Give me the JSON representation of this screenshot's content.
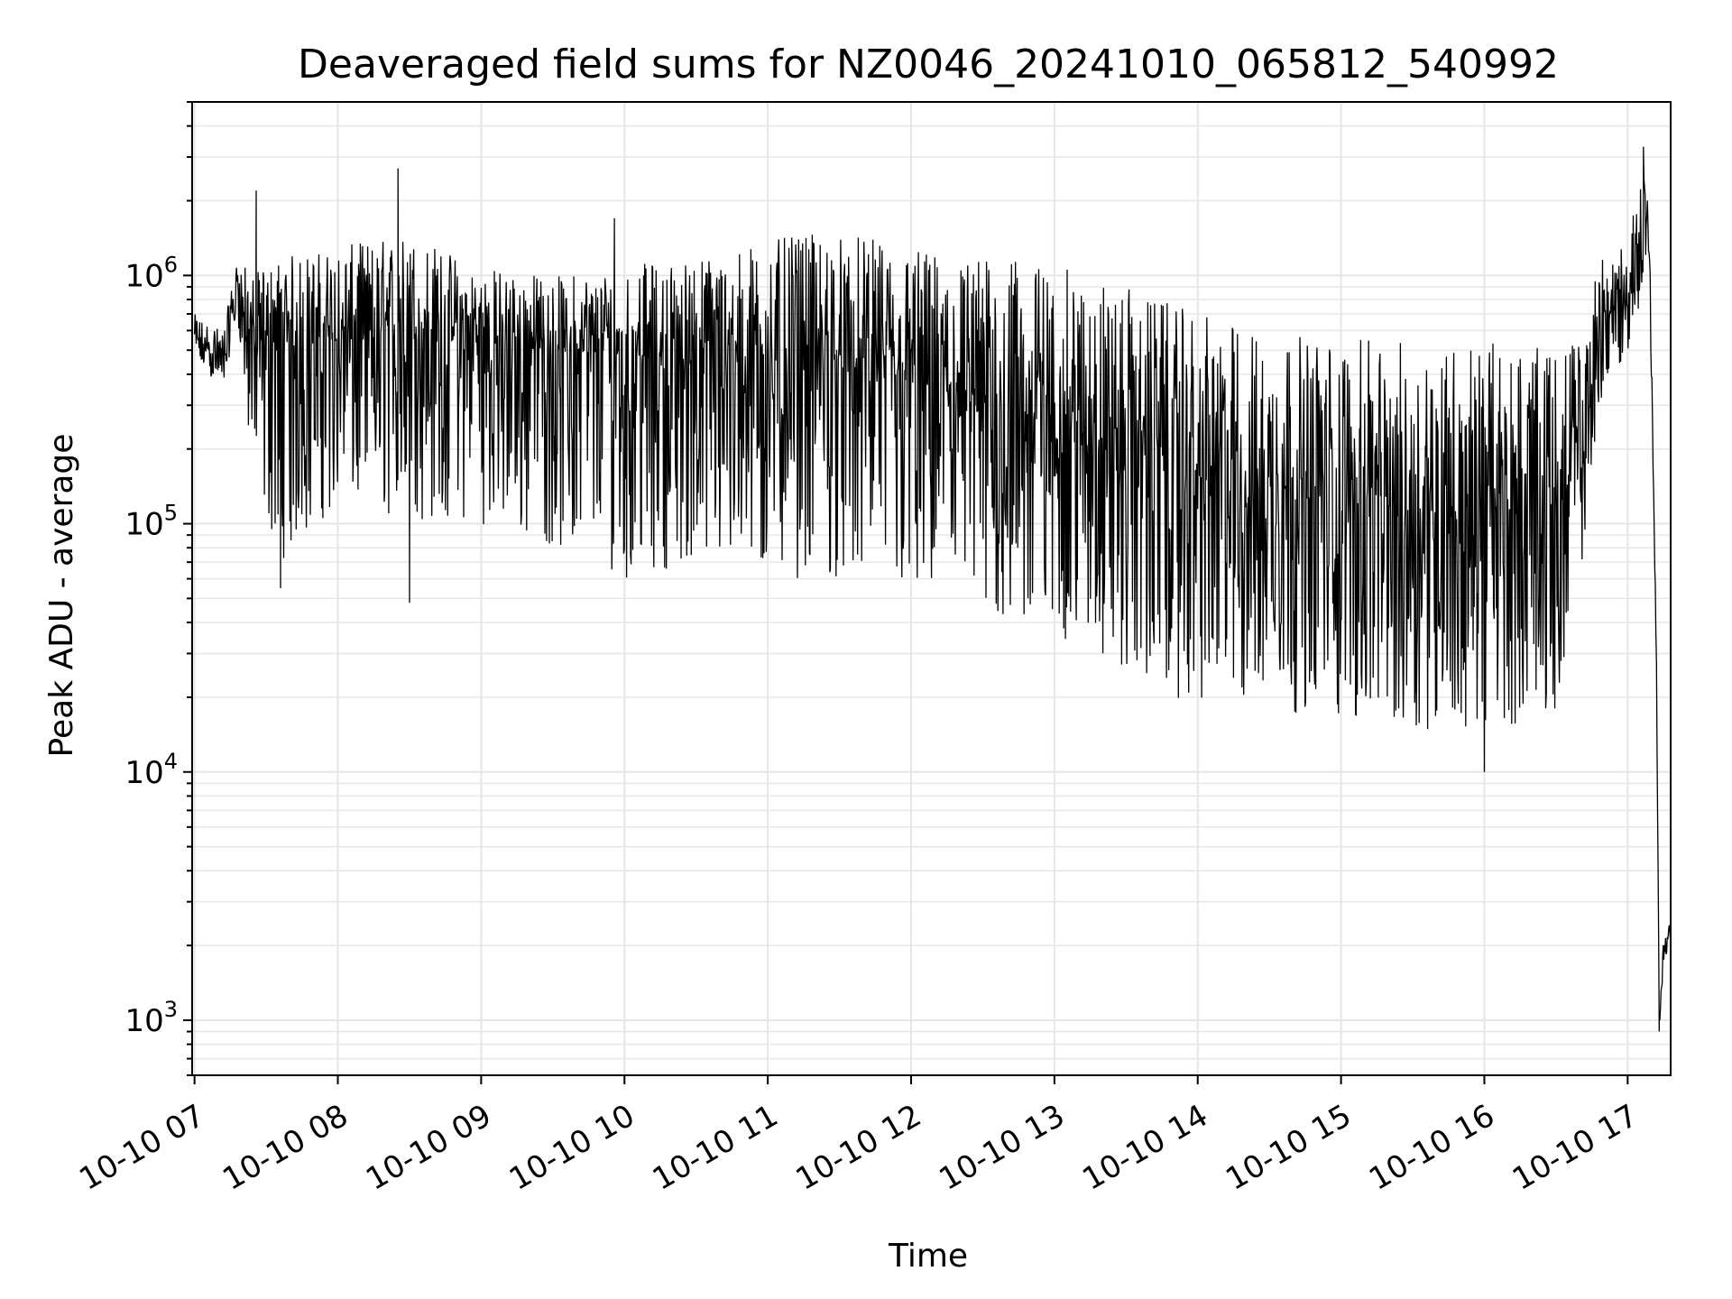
{
  "chart_data": {
    "type": "line",
    "title": "Deaveraged field sums for NZ0046_20241010_065812_540992",
    "xlabel": "Time",
    "ylabel": "Peak ADU - average",
    "yscale": "log",
    "ylim": [
      600,
      5000000
    ],
    "xlim": [
      "10-10 06:59",
      "10-10 17:18"
    ],
    "grid": true,
    "line_color": "#000000",
    "grid_color": "#e6e6e6",
    "x_ticks": [
      {
        "label": "10-10 07",
        "hour": 7
      },
      {
        "label": "10-10 08",
        "hour": 8
      },
      {
        "label": "10-10 09",
        "hour": 9
      },
      {
        "label": "10-10 10",
        "hour": 10
      },
      {
        "label": "10-10 11",
        "hour": 11
      },
      {
        "label": "10-10 12",
        "hour": 12
      },
      {
        "label": "10-10 13",
        "hour": 13
      },
      {
        "label": "10-10 14",
        "hour": 14
      },
      {
        "label": "10-10 15",
        "hour": 15
      },
      {
        "label": "10-10 16",
        "hour": 16
      },
      {
        "label": "10-10 17",
        "hour": 17
      }
    ],
    "y_ticks": [
      {
        "base": "10",
        "exp": "3",
        "value": 1000
      },
      {
        "base": "10",
        "exp": "4",
        "value": 10000
      },
      {
        "base": "10",
        "exp": "5",
        "value": 100000
      },
      {
        "base": "10",
        "exp": "6",
        "value": 1000000
      }
    ],
    "series": [
      {
        "description": "Noisy trace: envelope upper/lower and a typical level at each time (hours)",
        "envelope": [
          {
            "hour": 7.0,
            "typical": 550000,
            "low": 450000,
            "high": 700000
          },
          {
            "hour": 7.2,
            "typical": 450000,
            "low": 350000,
            "high": 600000
          },
          {
            "hour": 7.3,
            "typical": 900000,
            "low": 700000,
            "high": 1200000
          },
          {
            "hour": 7.4,
            "typical": 550000,
            "low": 150000,
            "high": 1000000
          },
          {
            "hour": 7.6,
            "typical": 500000,
            "low": 70000,
            "high": 1200000
          },
          {
            "hour": 8.0,
            "typical": 550000,
            "low": 120000,
            "high": 1300000
          },
          {
            "hour": 8.5,
            "typical": 550000,
            "low": 100000,
            "high": 1500000
          },
          {
            "hour": 9.0,
            "typical": 520000,
            "low": 100000,
            "high": 1100000
          },
          {
            "hour": 9.5,
            "typical": 500000,
            "low": 80000,
            "high": 1000000
          },
          {
            "hour": 10.0,
            "typical": 480000,
            "low": 60000,
            "high": 1100000
          },
          {
            "hour": 10.5,
            "typical": 450000,
            "low": 70000,
            "high": 1200000
          },
          {
            "hour": 11.0,
            "typical": 450000,
            "low": 60000,
            "high": 1400000
          },
          {
            "hour": 11.5,
            "typical": 450000,
            "low": 60000,
            "high": 1500000
          },
          {
            "hour": 12.0,
            "typical": 350000,
            "low": 50000,
            "high": 1300000
          },
          {
            "hour": 12.5,
            "typical": 300000,
            "low": 40000,
            "high": 1200000
          },
          {
            "hour": 13.0,
            "typical": 250000,
            "low": 35000,
            "high": 1100000
          },
          {
            "hour": 13.5,
            "typical": 200000,
            "low": 25000,
            "high": 900000
          },
          {
            "hour": 14.0,
            "typical": 150000,
            "low": 18000,
            "high": 700000
          },
          {
            "hour": 14.5,
            "typical": 130000,
            "low": 18000,
            "high": 600000
          },
          {
            "hour": 15.0,
            "typical": 120000,
            "low": 16000,
            "high": 550000
          },
          {
            "hour": 15.5,
            "typical": 110000,
            "low": 15000,
            "high": 550000
          },
          {
            "hour": 16.0,
            "typical": 110000,
            "low": 14000,
            "high": 550000
          },
          {
            "hour": 16.5,
            "typical": 100000,
            "low": 18000,
            "high": 500000
          },
          {
            "hour": 16.7,
            "typical": 200000,
            "low": 80000,
            "high": 600000
          },
          {
            "hour": 16.8,
            "typical": 600000,
            "low": 300000,
            "high": 1200000
          },
          {
            "hour": 17.0,
            "typical": 800000,
            "low": 500000,
            "high": 1300000
          },
          {
            "hour": 17.1,
            "typical": 1600000,
            "low": 800000,
            "high": 3200000
          },
          {
            "hour": 17.15,
            "typical": 1500000,
            "low": 1200000,
            "high": 1800000
          },
          {
            "hour": 17.2,
            "typical": 30000,
            "low": 20000,
            "high": 40000
          },
          {
            "hour": 17.22,
            "typical": 1000,
            "low": 900,
            "high": 1400
          },
          {
            "hour": 17.25,
            "typical": 1900,
            "low": 1800,
            "high": 2400
          },
          {
            "hour": 17.3,
            "typical": 2300,
            "low": 2000,
            "high": 2500
          }
        ],
        "notable_values": [
          {
            "hour": 7.43,
            "value": 2200000
          },
          {
            "hour": 8.42,
            "value": 2700000
          },
          {
            "hour": 9.93,
            "value": 1700000
          },
          {
            "hour": 7.6,
            "value": 55000
          },
          {
            "hour": 8.5,
            "value": 48000
          },
          {
            "hour": 16.0,
            "value": 10000
          },
          {
            "hour": 17.11,
            "value": 3300000
          },
          {
            "hour": 17.22,
            "value": 900
          }
        ]
      }
    ]
  }
}
